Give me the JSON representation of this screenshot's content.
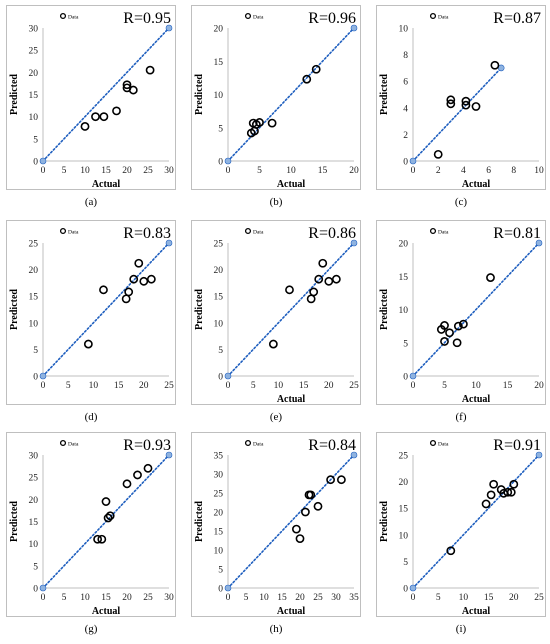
{
  "chart_data": [
    {
      "type": "scatter",
      "caption": "(a)",
      "r_label": "R=0.95",
      "legend": "Data",
      "xlabel": "Actual",
      "ylabel": "Predicted",
      "xlim": [
        0,
        30
      ],
      "ylim": [
        0,
        30
      ],
      "xticks": [
        0,
        5,
        10,
        15,
        20,
        25,
        30
      ],
      "yticks": [
        0,
        5,
        10,
        15,
        20,
        25,
        30
      ],
      "line_from": [
        0,
        0
      ],
      "line_to": [
        30,
        30
      ],
      "points": [
        [
          10,
          7.8
        ],
        [
          12.5,
          10
        ],
        [
          14.5,
          10
        ],
        [
          17.5,
          11.3
        ],
        [
          20,
          17.2
        ],
        [
          20,
          16.5
        ],
        [
          21.5,
          16
        ],
        [
          25.5,
          20.5
        ]
      ]
    },
    {
      "type": "scatter",
      "caption": "(b)",
      "r_label": "R=0.96",
      "legend": "Data",
      "xlabel": "Actual",
      "ylabel": "Predicted",
      "xlim": [
        0,
        20
      ],
      "ylim": [
        0,
        20
      ],
      "xticks": [
        0,
        5,
        10,
        15,
        20
      ],
      "yticks": [
        0,
        5,
        10,
        15,
        20
      ],
      "line_from": [
        0,
        0
      ],
      "line_to": [
        20,
        20
      ],
      "points": [
        [
          3.7,
          4.2
        ],
        [
          4,
          5.7
        ],
        [
          4.2,
          4.5
        ],
        [
          4.5,
          5.5
        ],
        [
          5,
          5.8
        ],
        [
          7,
          5.7
        ],
        [
          12.5,
          12.3
        ],
        [
          14,
          13.8
        ]
      ]
    },
    {
      "type": "scatter",
      "caption": "(c)",
      "r_label": "R=0.87",
      "legend": "Data",
      "xlabel": "Actual",
      "ylabel": "Predicted",
      "xlim": [
        0,
        10
      ],
      "ylim": [
        0,
        10
      ],
      "xticks": [
        0,
        2,
        4,
        6,
        8,
        10
      ],
      "yticks": [
        0,
        2,
        4,
        6,
        8,
        10
      ],
      "line_from": [
        0,
        0
      ],
      "line_to": [
        7,
        7
      ],
      "points": [
        [
          2,
          0.5
        ],
        [
          3,
          4.3
        ],
        [
          3,
          4.6
        ],
        [
          4.2,
          4.2
        ],
        [
          4.2,
          4.5
        ],
        [
          5,
          4.1
        ],
        [
          6.5,
          7.2
        ]
      ]
    },
    {
      "type": "scatter",
      "caption": "(d)",
      "r_label": "R=0.83",
      "legend": "Data",
      "xlabel": "",
      "ylabel": "Predicted",
      "xlim": [
        0,
        25
      ],
      "ylim": [
        0,
        25
      ],
      "xticks": [
        0,
        5,
        10,
        15,
        20,
        25
      ],
      "yticks": [
        0,
        5,
        10,
        15,
        20,
        25
      ],
      "line_from": [
        0,
        0
      ],
      "line_to": [
        25,
        25
      ],
      "points": [
        [
          9,
          6
        ],
        [
          12,
          16.2
        ],
        [
          16.5,
          14.5
        ],
        [
          17,
          15.8
        ],
        [
          18,
          18.2
        ],
        [
          19,
          21.2
        ],
        [
          20,
          17.8
        ],
        [
          21.5,
          18.2
        ]
      ]
    },
    {
      "type": "scatter",
      "caption": "(e)",
      "r_label": "R=0.86",
      "legend": "Data",
      "xlabel": "Actual",
      "ylabel": "Predicted",
      "xlim": [
        0,
        25
      ],
      "ylim": [
        0,
        25
      ],
      "xticks": [
        0,
        5,
        10,
        15,
        20,
        25
      ],
      "yticks": [
        0,
        5,
        10,
        15,
        20,
        25
      ],
      "line_from": [
        0,
        0
      ],
      "line_to": [
        25,
        25
      ],
      "points": [
        [
          9,
          6
        ],
        [
          12.2,
          16.2
        ],
        [
          16.5,
          14.5
        ],
        [
          17,
          15.8
        ],
        [
          18,
          18.2
        ],
        [
          18.8,
          21.2
        ],
        [
          20,
          17.8
        ],
        [
          21.5,
          18.2
        ]
      ]
    },
    {
      "type": "scatter",
      "caption": "(f)",
      "r_label": "R=0.81",
      "legend": "Data",
      "xlabel": "Actual",
      "ylabel": "Predicted",
      "xlim": [
        0,
        20
      ],
      "ylim": [
        0,
        20
      ],
      "xticks": [
        0,
        5,
        10,
        15,
        20
      ],
      "yticks": [
        0,
        5,
        10,
        15,
        20
      ],
      "line_from": [
        0,
        0
      ],
      "line_to": [
        20,
        20
      ],
      "points": [
        [
          4.5,
          7
        ],
        [
          5,
          7.6
        ],
        [
          5,
          5.2
        ],
        [
          5.8,
          6.5
        ],
        [
          7,
          5
        ],
        [
          7.2,
          7.5
        ],
        [
          8,
          7.8
        ],
        [
          12.3,
          14.8
        ]
      ]
    },
    {
      "type": "scatter",
      "caption": "(g)",
      "r_label": "R=0.93",
      "legend": "Data",
      "xlabel": "Actual",
      "ylabel": "Predicted",
      "xlim": [
        0,
        30
      ],
      "ylim": [
        0,
        30
      ],
      "xticks": [
        0,
        5,
        10,
        15,
        20,
        25,
        30
      ],
      "yticks": [
        0,
        5,
        10,
        15,
        20,
        25,
        30
      ],
      "line_from": [
        0,
        0
      ],
      "line_to": [
        30,
        30
      ],
      "points": [
        [
          13,
          11
        ],
        [
          14,
          11
        ],
        [
          15,
          19.5
        ],
        [
          15.5,
          15.8
        ],
        [
          16,
          16.3
        ],
        [
          20,
          23.5
        ],
        [
          22.5,
          25.5
        ],
        [
          25,
          27
        ]
      ]
    },
    {
      "type": "scatter",
      "caption": "(h)",
      "r_label": "R=0.84",
      "legend": "Data",
      "xlabel": "Actual",
      "ylabel": "Predicted",
      "xlim": [
        0,
        35
      ],
      "ylim": [
        0,
        35
      ],
      "xticks": [
        0,
        5,
        10,
        15,
        20,
        25,
        30,
        35
      ],
      "yticks": [
        0,
        5,
        10,
        15,
        20,
        25,
        30,
        35
      ],
      "line_from": [
        0,
        0
      ],
      "line_to": [
        35,
        35
      ],
      "points": [
        [
          19,
          15.5
        ],
        [
          20,
          13
        ],
        [
          21.5,
          20
        ],
        [
          22.5,
          24.5
        ],
        [
          23,
          24.5
        ],
        [
          25,
          21.5
        ],
        [
          28.5,
          28.5
        ],
        [
          31.5,
          28.5
        ]
      ]
    },
    {
      "type": "scatter",
      "caption": "(i)",
      "r_label": "R=0.91",
      "legend": "Data",
      "xlabel": "Actual",
      "ylabel": "Predicted",
      "xlim": [
        0,
        25
      ],
      "ylim": [
        0,
        25
      ],
      "xticks": [
        0,
        5,
        10,
        15,
        20,
        25
      ],
      "yticks": [
        0,
        5,
        10,
        15,
        20,
        25
      ],
      "line_from": [
        0,
        0
      ],
      "line_to": [
        25,
        25
      ],
      "points": [
        [
          7.5,
          7
        ],
        [
          14.5,
          15.8
        ],
        [
          15.5,
          17.5
        ],
        [
          16,
          19.5
        ],
        [
          17.5,
          18.5
        ],
        [
          18,
          17.8
        ],
        [
          18.8,
          18
        ],
        [
          19.5,
          18
        ],
        [
          20,
          19.5
        ]
      ]
    }
  ],
  "colors": {
    "marker": "#000000",
    "fit_line": "#1f5fbf",
    "endpoint": "#8fb3e0",
    "axis": "#bfbfbf",
    "tick_text": "#222222"
  }
}
